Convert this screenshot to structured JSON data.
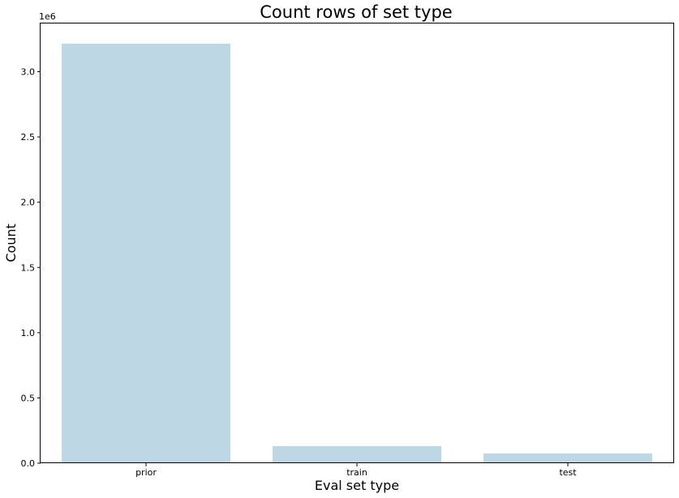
{
  "chart_data": {
    "type": "bar",
    "title": "Count rows of set type",
    "xlabel": "Eval set type",
    "ylabel": "Count",
    "categories": [
      "prior",
      "train",
      "test"
    ],
    "values": [
      3214874,
      131209,
      75000
    ],
    "ylim": [
      0,
      3375618
    ],
    "yticks": [
      0,
      500000,
      1000000,
      1500000,
      2000000,
      2500000,
      3000000
    ],
    "ytick_labels": [
      "0.0",
      "0.5",
      "1.0",
      "1.5",
      "2.0",
      "2.5",
      "3.0"
    ],
    "y_offset_label": "1e6",
    "bar_color": "#bdd7e5",
    "grid": false,
    "legend": "none"
  }
}
